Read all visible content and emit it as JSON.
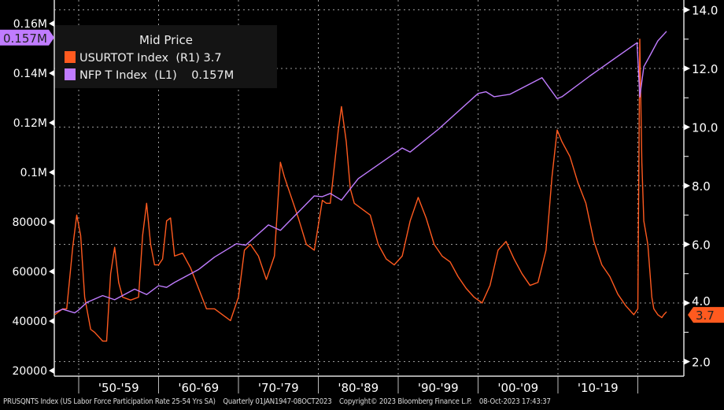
{
  "chart_data": {
    "type": "line",
    "title": "",
    "legend": {
      "title": "Mid Price",
      "placement": "top-left",
      "entries": [
        {
          "label": "USURTOT Index  (R1)",
          "value": "3.7",
          "color": "#ff5a1f"
        },
        {
          "label": "NFP T Index  (L1)",
          "value": "0.157M",
          "color": "#c07cff"
        }
      ]
    },
    "left_axis": {
      "range": [
        13000,
        160000
      ],
      "ticks": [
        {
          "value": 160000,
          "label": "0.16M"
        },
        {
          "value": 140000,
          "label": "0.14M"
        },
        {
          "value": 120000,
          "label": "0.12M"
        },
        {
          "value": 100000,
          "label": "0.1M"
        },
        {
          "value": 80000,
          "label": "80000"
        },
        {
          "value": 60000,
          "label": "60000"
        },
        {
          "value": 40000,
          "label": "40000"
        },
        {
          "value": 20000,
          "label": "20000"
        }
      ],
      "last_value_marker": "0.157M"
    },
    "right_axis": {
      "range": [
        1.5,
        14.4
      ],
      "ticks": [
        {
          "value": 14,
          "label": "14.0"
        },
        {
          "value": 12,
          "label": "12.0"
        },
        {
          "value": 10,
          "label": "10.0"
        },
        {
          "value": 8,
          "label": "8.0"
        },
        {
          "value": 6,
          "label": "6.0"
        },
        {
          "value": 4,
          "label": "4.0"
        },
        {
          "value": 2,
          "label": "2.0"
        }
      ],
      "last_value_marker": "3.7"
    },
    "x_axis": {
      "range": [
        1947,
        2024
      ],
      "boundaries": [
        1950,
        1960,
        1970,
        1980,
        1990,
        2000,
        2010,
        2020
      ],
      "labels": [
        {
          "from": 1950,
          "to": 1960,
          "label": "'50-'59"
        },
        {
          "from": 1960,
          "to": 1970,
          "label": "'60-'69"
        },
        {
          "from": 1970,
          "to": 1980,
          "label": "'70-'79"
        },
        {
          "from": 1980,
          "to": 1990,
          "label": "'80-'89"
        },
        {
          "from": 1990,
          "to": 2000,
          "label": "'90-'99"
        },
        {
          "from": 2000,
          "to": 2010,
          "label": "'00-'09"
        },
        {
          "from": 2010,
          "to": 2020,
          "label": "'10-'19"
        }
      ]
    },
    "grid": true,
    "series": [
      {
        "name": "USURTOT Index",
        "axis": "right",
        "color": "#ff5a1f",
        "points": [
          [
            1947,
            3.6
          ],
          [
            1948,
            3.8
          ],
          [
            1948.5,
            3.8
          ],
          [
            1949.25,
            5.9
          ],
          [
            1949.75,
            7.0
          ],
          [
            1950.25,
            6.3
          ],
          [
            1950.75,
            4.2
          ],
          [
            1951.5,
            3.1
          ],
          [
            1952,
            3.0
          ],
          [
            1953,
            2.7
          ],
          [
            1953.5,
            2.7
          ],
          [
            1954,
            5.0
          ],
          [
            1954.5,
            5.9
          ],
          [
            1955,
            4.7
          ],
          [
            1955.5,
            4.2
          ],
          [
            1956.5,
            4.1
          ],
          [
            1957.5,
            4.2
          ],
          [
            1958,
            6.3
          ],
          [
            1958.5,
            7.4
          ],
          [
            1959,
            6.0
          ],
          [
            1959.5,
            5.3
          ],
          [
            1960,
            5.3
          ],
          [
            1960.5,
            5.5
          ],
          [
            1961,
            6.8
          ],
          [
            1961.5,
            6.9
          ],
          [
            1962,
            5.6
          ],
          [
            1963,
            5.7
          ],
          [
            1964,
            5.2
          ],
          [
            1965,
            4.5
          ],
          [
            1966,
            3.8
          ],
          [
            1967,
            3.8
          ],
          [
            1968,
            3.6
          ],
          [
            1969,
            3.4
          ],
          [
            1970,
            4.2
          ],
          [
            1970.75,
            5.8
          ],
          [
            1971.5,
            6.0
          ],
          [
            1972.5,
            5.6
          ],
          [
            1973.5,
            4.8
          ],
          [
            1974.5,
            5.6
          ],
          [
            1975.25,
            8.8
          ],
          [
            1975.75,
            8.3
          ],
          [
            1976.5,
            7.7
          ],
          [
            1977.5,
            6.9
          ],
          [
            1978.5,
            6.0
          ],
          [
            1979.5,
            5.8
          ],
          [
            1980.5,
            7.5
          ],
          [
            1981,
            7.4
          ],
          [
            1981.5,
            7.4
          ],
          [
            1982.5,
            9.9
          ],
          [
            1982.9,
            10.7
          ],
          [
            1983.5,
            9.5
          ],
          [
            1984,
            7.9
          ],
          [
            1984.5,
            7.4
          ],
          [
            1985.5,
            7.2
          ],
          [
            1986.5,
            7.0
          ],
          [
            1987.5,
            6.0
          ],
          [
            1988.5,
            5.5
          ],
          [
            1989.5,
            5.3
          ],
          [
            1990.5,
            5.6
          ],
          [
            1991.5,
            6.8
          ],
          [
            1992.5,
            7.6
          ],
          [
            1993.5,
            6.9
          ],
          [
            1994.5,
            6.0
          ],
          [
            1995.5,
            5.6
          ],
          [
            1996.5,
            5.4
          ],
          [
            1997.5,
            4.9
          ],
          [
            1998.5,
            4.5
          ],
          [
            1999.5,
            4.2
          ],
          [
            2000.5,
            4.0
          ],
          [
            2001.5,
            4.6
          ],
          [
            2002.5,
            5.8
          ],
          [
            2003.5,
            6.1
          ],
          [
            2004.5,
            5.5
          ],
          [
            2005.5,
            5.0
          ],
          [
            2006.5,
            4.6
          ],
          [
            2007.5,
            4.7
          ],
          [
            2008.5,
            5.8
          ],
          [
            2009.25,
            8.3
          ],
          [
            2009.9,
            9.9
          ],
          [
            2010.5,
            9.5
          ],
          [
            2011.5,
            9.0
          ],
          [
            2012.5,
            8.1
          ],
          [
            2013.5,
            7.4
          ],
          [
            2014.5,
            6.1
          ],
          [
            2015.5,
            5.3
          ],
          [
            2016.5,
            4.9
          ],
          [
            2017.5,
            4.3
          ],
          [
            2018.5,
            3.9
          ],
          [
            2019.5,
            3.6
          ],
          [
            2020,
            3.8
          ],
          [
            2020.25,
            13.0
          ],
          [
            2020.5,
            8.8
          ],
          [
            2020.75,
            6.8
          ],
          [
            2021.25,
            6.0
          ],
          [
            2021.75,
            4.2
          ],
          [
            2022,
            3.8
          ],
          [
            2022.5,
            3.6
          ],
          [
            2023,
            3.5
          ],
          [
            2023.25,
            3.6
          ],
          [
            2023.6,
            3.7
          ]
        ]
      },
      {
        "name": "NFP T Index",
        "axis": "left",
        "color": "#c07cff",
        "points": [
          [
            1947,
            43500
          ],
          [
            1948,
            44800
          ],
          [
            1949.5,
            43300
          ],
          [
            1950,
            44500
          ],
          [
            1951,
            47500
          ],
          [
            1953,
            50300
          ],
          [
            1954.5,
            48600
          ],
          [
            1957,
            52900
          ],
          [
            1958.5,
            50700
          ],
          [
            1960,
            54300
          ],
          [
            1961,
            53600
          ],
          [
            1962,
            55600
          ],
          [
            1965,
            60800
          ],
          [
            1967,
            65800
          ],
          [
            1969.75,
            71200
          ],
          [
            1970.9,
            70600
          ],
          [
            1973.75,
            78800
          ],
          [
            1975.25,
            76600
          ],
          [
            1979.5,
            90500
          ],
          [
            1980.5,
            90200
          ],
          [
            1981.5,
            91500
          ],
          [
            1982.9,
            88800
          ],
          [
            1985,
            97500
          ],
          [
            1990.5,
            109800
          ],
          [
            1991.5,
            108200
          ],
          [
            1995,
            117300
          ],
          [
            2000,
            131800
          ],
          [
            2001,
            132500
          ],
          [
            2002,
            130500
          ],
          [
            2004,
            131500
          ],
          [
            2008,
            138200
          ],
          [
            2009.9,
            129700
          ],
          [
            2010.5,
            130500
          ],
          [
            2014,
            138900
          ],
          [
            2019.9,
            152300
          ],
          [
            2020.25,
            130400
          ],
          [
            2020.75,
            142600
          ],
          [
            2021.5,
            147000
          ],
          [
            2022.5,
            153000
          ],
          [
            2023.6,
            156900
          ]
        ]
      }
    ]
  },
  "footer": {
    "description": "PRUSQNTS Index (US Labor Force Participation Rate 25-54 Yrs SA)",
    "range": "Quarterly 01JAN1947-08OCT2023",
    "copyright": "Copyright© 2023 Bloomberg Finance L.P.",
    "timestamp": "08-Oct-2023 17:43:37"
  }
}
